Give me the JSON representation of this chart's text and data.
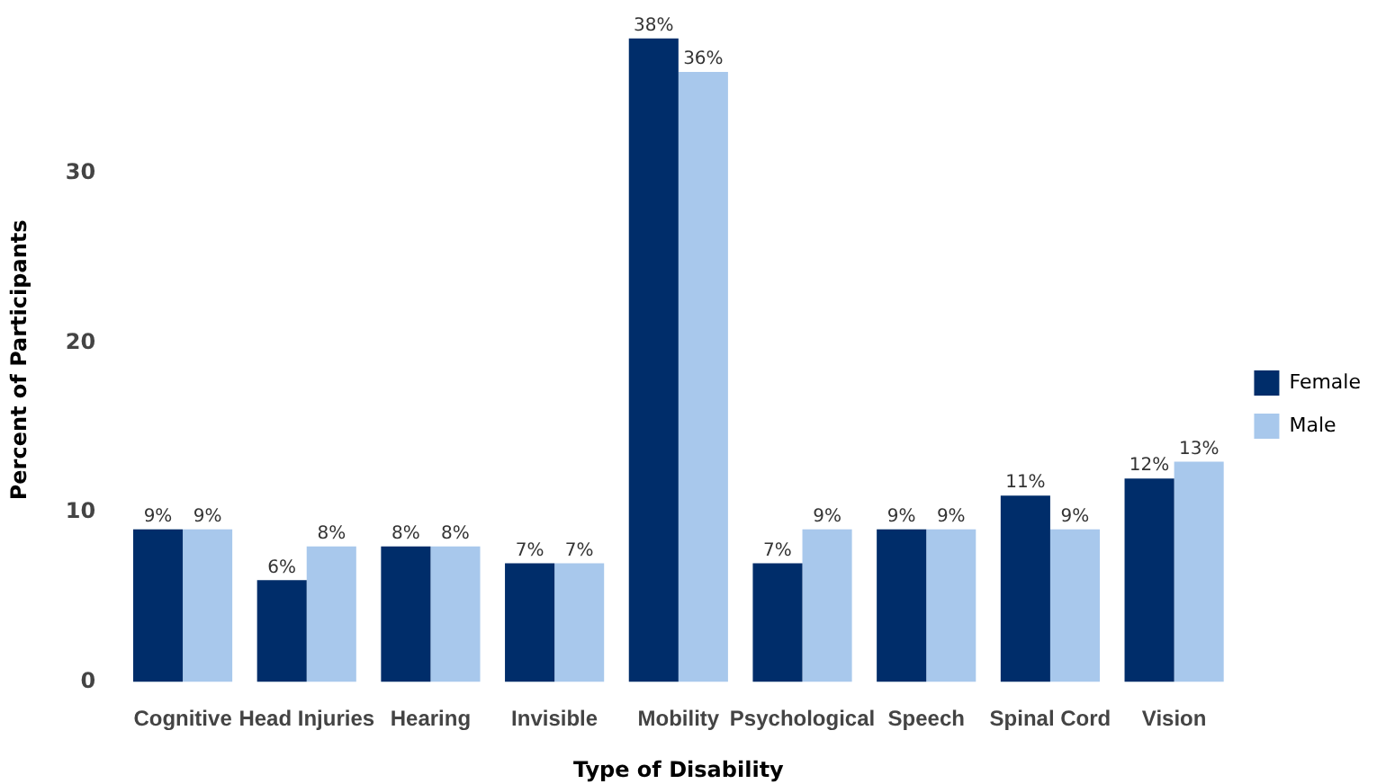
{
  "chart_data": {
    "type": "bar",
    "xlabel": "Type of Disability",
    "ylabel": "Percent of Participants",
    "categories": [
      "Cognitive",
      "Head Injuries",
      "Hearing",
      "Invisible",
      "Mobility",
      "Psychological",
      "Speech",
      "Spinal Cord",
      "Vision"
    ],
    "series": [
      {
        "name": "Female",
        "color": "#002d6a",
        "values": [
          9,
          6,
          8,
          7,
          38,
          7,
          9,
          11,
          12
        ],
        "value_labels": [
          "9%",
          "6%",
          "8%",
          "7%",
          "38%",
          "7%",
          "9%",
          "11%",
          "12%"
        ]
      },
      {
        "name": "Male",
        "color": "#a8c8ec",
        "values": [
          9,
          8,
          8,
          7,
          36,
          9,
          9,
          9,
          13
        ],
        "value_labels": [
          "9%",
          "8%",
          "8%",
          "7%",
          "36%",
          "9%",
          "9%",
          "9%",
          "13%"
        ]
      }
    ],
    "ylim": [
      0,
      38
    ],
    "yticks": [
      0,
      10,
      20,
      30
    ],
    "grid": false,
    "legend": "right"
  }
}
